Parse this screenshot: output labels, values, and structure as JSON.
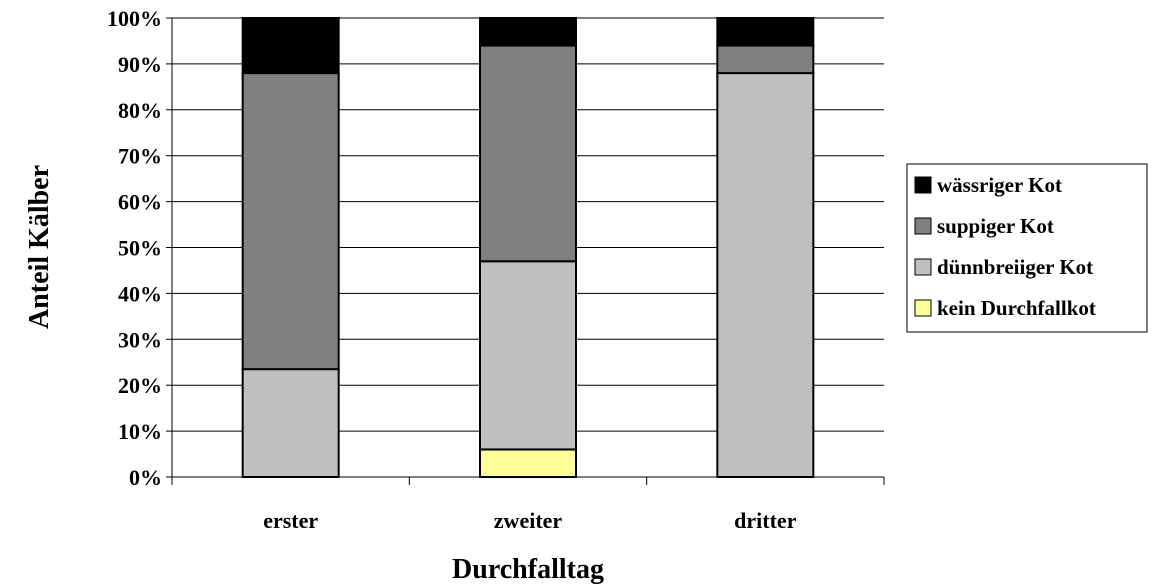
{
  "chart_data": {
    "type": "bar",
    "stacked": true,
    "percent_stacked": true,
    "categories": [
      "erster",
      "zweiter",
      "dritter"
    ],
    "series": [
      {
        "name": "kein Durchfallkot",
        "color": "#ffff99",
        "values": [
          0,
          6,
          0
        ]
      },
      {
        "name": "dünnbreiiger Kot",
        "color": "#c0c0c0",
        "values": [
          23.5,
          41,
          88
        ]
      },
      {
        "name": "suppiger Kot",
        "color": "#808080",
        "values": [
          64.5,
          47,
          6
        ]
      },
      {
        "name": "wässriger Kot",
        "color": "#000000",
        "values": [
          12,
          6,
          6
        ]
      }
    ],
    "xlabel": "Durchfalltag",
    "ylabel": "Anteil Kälber",
    "yticks": [
      "0%",
      "10%",
      "20%",
      "30%",
      "40%",
      "50%",
      "60%",
      "70%",
      "80%",
      "90%",
      "100%"
    ],
    "ylim": [
      0,
      100
    ],
    "grid": true,
    "legend_position": "right",
    "legend_order": [
      "wässriger Kot",
      "suppiger Kot",
      "dünnbreiiger Kot",
      "kein Durchfallkot"
    ]
  }
}
